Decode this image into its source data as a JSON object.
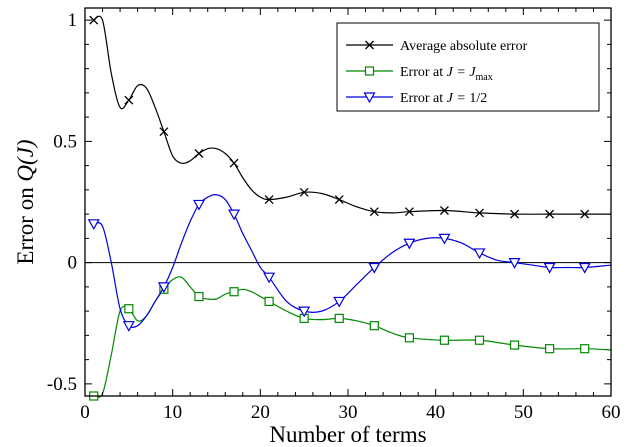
{
  "chart_data": {
    "type": "line",
    "title": "",
    "xlabel": "Number of terms",
    "ylabel_prefix": "Error on ",
    "ylabel_math": "Q(J)",
    "xlim": [
      0,
      60
    ],
    "ylim": [
      -0.55,
      1.05
    ],
    "xticks": [
      0,
      10,
      20,
      30,
      40,
      50,
      60
    ],
    "yticks": [
      -0.5,
      0,
      0.5,
      1
    ],
    "xtick_labels": [
      "0",
      "10",
      "20",
      "30",
      "40",
      "50",
      "60"
    ],
    "ytick_labels": [
      "-0.5",
      "0",
      "0.5",
      "1"
    ],
    "zero_line": true,
    "grid": false,
    "legend_position": "top-right",
    "legend": [
      {
        "series_index": 0,
        "text": "Average absolute error"
      },
      {
        "series_index": 1,
        "text_prefix": "Error at ",
        "math": "J = J",
        "sub": "max"
      },
      {
        "series_index": 2,
        "text_prefix": "Error at ",
        "math": "J = ",
        "suffix": "1/2"
      }
    ],
    "series": [
      {
        "name": "Average absolute error",
        "color": "#000000",
        "marker": "x",
        "x": [
          1,
          2,
          3,
          4,
          5,
          6,
          7,
          8,
          9,
          10,
          11,
          12,
          13,
          14,
          15,
          16,
          17,
          18,
          19,
          20,
          21,
          23,
          25,
          27,
          29,
          31,
          33,
          35,
          37,
          41,
          45,
          49,
          53,
          57,
          60
        ],
        "y": [
          1.0,
          1.0,
          0.78,
          0.64,
          0.67,
          0.73,
          0.72,
          0.64,
          0.54,
          0.44,
          0.41,
          0.42,
          0.45,
          0.47,
          0.47,
          0.45,
          0.41,
          0.35,
          0.3,
          0.27,
          0.26,
          0.27,
          0.29,
          0.285,
          0.26,
          0.23,
          0.21,
          0.205,
          0.21,
          0.215,
          0.205,
          0.2,
          0.2,
          0.2,
          0.2
        ],
        "marker_x": [
          1,
          5,
          9,
          13,
          17,
          21,
          25,
          29,
          33,
          37,
          41,
          45,
          49,
          53,
          57
        ],
        "marker_y": [
          1.0,
          0.67,
          0.54,
          0.45,
          0.41,
          0.26,
          0.29,
          0.26,
          0.21,
          0.21,
          0.215,
          0.205,
          0.2,
          0.2,
          0.2
        ]
      },
      {
        "name": "Error at J = Jmax",
        "color": "#008800",
        "marker": "square",
        "x": [
          1,
          2,
          3,
          4,
          5,
          6,
          7,
          8,
          9,
          10,
          11,
          12,
          13,
          14,
          15,
          16,
          17,
          18,
          19,
          20,
          21,
          23,
          25,
          27,
          29,
          31,
          33,
          35,
          37,
          41,
          45,
          49,
          53,
          57,
          60
        ],
        "y": [
          -0.55,
          -0.54,
          -0.38,
          -0.2,
          -0.19,
          -0.24,
          -0.22,
          -0.16,
          -0.11,
          -0.07,
          -0.06,
          -0.1,
          -0.14,
          -0.15,
          -0.15,
          -0.13,
          -0.12,
          -0.11,
          -0.12,
          -0.14,
          -0.16,
          -0.2,
          -0.23,
          -0.235,
          -0.23,
          -0.24,
          -0.26,
          -0.29,
          -0.31,
          -0.32,
          -0.32,
          -0.34,
          -0.355,
          -0.355,
          -0.36
        ],
        "marker_x": [
          1,
          5,
          9,
          13,
          17,
          21,
          25,
          29,
          33,
          37,
          41,
          45,
          49,
          53,
          57
        ],
        "marker_y": [
          -0.55,
          -0.19,
          -0.11,
          -0.14,
          -0.12,
          -0.16,
          -0.23,
          -0.23,
          -0.26,
          -0.31,
          -0.32,
          -0.32,
          -0.34,
          -0.355,
          -0.355
        ]
      },
      {
        "name": "Error at J = 1/2",
        "color": "#0000dd",
        "marker": "triangle-down",
        "x": [
          1,
          2,
          3,
          4,
          5,
          6,
          7,
          8,
          9,
          10,
          11,
          12,
          13,
          14,
          15,
          16,
          17,
          18,
          19,
          20,
          21,
          23,
          25,
          27,
          29,
          31,
          33,
          35,
          37,
          39,
          41,
          43,
          45,
          47,
          49,
          51,
          53,
          55,
          57,
          60
        ],
        "y": [
          0.16,
          0.15,
          0.0,
          -0.19,
          -0.26,
          -0.26,
          -0.22,
          -0.16,
          -0.1,
          -0.02,
          0.08,
          0.17,
          0.24,
          0.27,
          0.28,
          0.26,
          0.2,
          0.12,
          0.05,
          -0.02,
          -0.06,
          -0.16,
          -0.2,
          -0.2,
          -0.16,
          -0.09,
          -0.02,
          0.04,
          0.08,
          0.1,
          0.1,
          0.08,
          0.04,
          0.01,
          0.0,
          -0.01,
          -0.02,
          -0.02,
          -0.02,
          -0.01
        ],
        "marker_x": [
          1,
          5,
          9,
          13,
          17,
          21,
          25,
          29,
          33,
          37,
          41,
          45,
          49,
          53,
          57
        ],
        "marker_y": [
          0.16,
          -0.26,
          -0.1,
          0.24,
          0.2,
          -0.06,
          -0.2,
          -0.16,
          -0.02,
          0.08,
          0.1,
          0.04,
          0.0,
          -0.02,
          -0.02
        ]
      }
    ]
  }
}
